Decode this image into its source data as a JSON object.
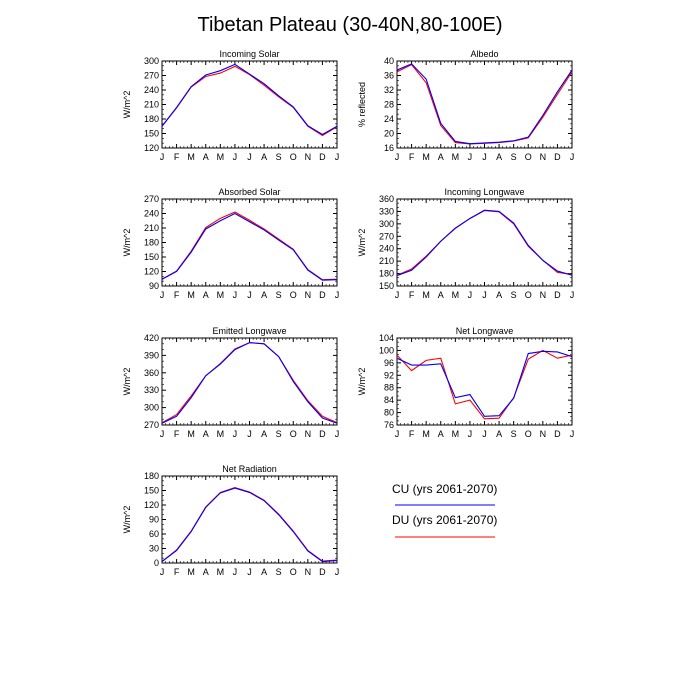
{
  "figure_title": "Tibetan Plateau (30-40N,80-100E)",
  "legend": {
    "entries": [
      {
        "label": "CU (yrs 2061-2070)",
        "color": "#0000ff"
      },
      {
        "label": "DU (yrs 2061-2070)",
        "color": "#ff0000"
      }
    ]
  },
  "chart_data": [
    {
      "type": "line",
      "title": "Incoming Solar",
      "ylabel": "W/m^2",
      "categories": [
        "J",
        "F",
        "M",
        "A",
        "M",
        "J",
        "J",
        "A",
        "S",
        "O",
        "N",
        "D",
        "J"
      ],
      "ylim": [
        120,
        300
      ],
      "yticks": [
        120,
        150,
        180,
        210,
        240,
        270,
        300
      ],
      "series": [
        {
          "name": "CU (yrs 2061-2070)",
          "color": "#0000ff",
          "values": [
            165,
            204,
            247,
            271,
            280,
            293,
            273,
            253,
            228,
            205,
            166,
            148,
            165
          ]
        },
        {
          "name": "DU (yrs 2061-2070)",
          "color": "#ff0000",
          "values": [
            165,
            203,
            246,
            268,
            275,
            289,
            272,
            250,
            226,
            204,
            165,
            146,
            164
          ]
        }
      ]
    },
    {
      "type": "line",
      "title": "Albedo",
      "ylabel": "% reflected",
      "categories": [
        "J",
        "F",
        "M",
        "A",
        "M",
        "J",
        "J",
        "A",
        "S",
        "O",
        "N",
        "D",
        "J"
      ],
      "ylim": [
        16,
        40
      ],
      "yticks": [
        16,
        20,
        24,
        28,
        32,
        36,
        40
      ],
      "series": [
        {
          "name": "CU (yrs 2061-2070)",
          "color": "#0000ff",
          "values": [
            37.5,
            39.2,
            35.0,
            22.8,
            17.8,
            17.2,
            17.4,
            17.6,
            18.0,
            19.0,
            25.0,
            31.5,
            37.5
          ]
        },
        {
          "name": "DU (yrs 2061-2070)",
          "color": "#ff0000",
          "values": [
            37.0,
            39.0,
            34.0,
            22.2,
            17.5,
            17.1,
            17.3,
            17.5,
            17.9,
            18.8,
            24.5,
            30.8,
            37.0
          ]
        }
      ]
    },
    {
      "type": "line",
      "title": "Absorbed Solar",
      "ylabel": "W/m^2",
      "categories": [
        "J",
        "F",
        "M",
        "A",
        "M",
        "J",
        "J",
        "A",
        "S",
        "O",
        "N",
        "D",
        "J"
      ],
      "ylim": [
        90,
        270
      ],
      "yticks": [
        90,
        120,
        150,
        180,
        210,
        240,
        270
      ],
      "series": [
        {
          "name": "CU (yrs 2061-2070)",
          "color": "#0000ff",
          "values": [
            104,
            120,
            160,
            208,
            225,
            240,
            223,
            206,
            185,
            165,
            123,
            102,
            103
          ]
        },
        {
          "name": "DU (yrs 2061-2070)",
          "color": "#ff0000",
          "values": [
            104,
            121,
            162,
            211,
            230,
            243,
            226,
            208,
            187,
            166,
            124,
            103,
            104
          ]
        }
      ]
    },
    {
      "type": "line",
      "title": "Incoming Longwave",
      "ylabel": "W/m^2",
      "categories": [
        "J",
        "F",
        "M",
        "A",
        "M",
        "J",
        "J",
        "A",
        "S",
        "O",
        "N",
        "D",
        "J"
      ],
      "ylim": [
        150,
        360
      ],
      "yticks": [
        150,
        180,
        210,
        240,
        270,
        300,
        330,
        360
      ],
      "series": [
        {
          "name": "CU (yrs 2061-2070)",
          "color": "#0000ff",
          "values": [
            175,
            188,
            220,
            258,
            290,
            313,
            333,
            330,
            302,
            248,
            212,
            186,
            176
          ]
        },
        {
          "name": "DU (yrs 2061-2070)",
          "color": "#ff0000",
          "values": [
            176,
            191,
            222,
            258,
            289,
            313,
            332,
            329,
            300,
            246,
            212,
            183,
            178
          ]
        }
      ]
    },
    {
      "type": "line",
      "title": "Emitted Longwave",
      "ylabel": "W/m^2",
      "categories": [
        "J",
        "F",
        "M",
        "A",
        "M",
        "J",
        "J",
        "A",
        "S",
        "O",
        "N",
        "D",
        "J"
      ],
      "ylim": [
        270,
        420
      ],
      "yticks": [
        270,
        300,
        330,
        360,
        390,
        420
      ],
      "series": [
        {
          "name": "CU (yrs 2061-2070)",
          "color": "#0000ff",
          "values": [
            273,
            285,
            317,
            355,
            375,
            400,
            412,
            410,
            388,
            345,
            310,
            282,
            273
          ]
        },
        {
          "name": "DU (yrs 2061-2070)",
          "color": "#ff0000",
          "values": [
            274,
            288,
            320,
            355,
            376,
            401,
            412,
            410,
            388,
            347,
            312,
            285,
            274
          ]
        }
      ]
    },
    {
      "type": "line",
      "title": "Net Longwave",
      "ylabel": "W/m^2",
      "categories": [
        "J",
        "F",
        "M",
        "A",
        "M",
        "J",
        "J",
        "A",
        "S",
        "O",
        "N",
        "D",
        "J"
      ],
      "ylim": [
        76,
        104
      ],
      "yticks": [
        76,
        80,
        84,
        88,
        92,
        96,
        100,
        104
      ],
      "series": [
        {
          "name": "CU (yrs 2061-2070)",
          "color": "#0000ff",
          "values": [
            97.5,
            95.3,
            95.3,
            95.7,
            84.8,
            85.8,
            78.8,
            79.0,
            84.6,
            99.0,
            99.7,
            99.5,
            98.0
          ]
        },
        {
          "name": "DU (yrs 2061-2070)",
          "color": "#ff0000",
          "values": [
            98.5,
            93.5,
            96.8,
            97.5,
            82.8,
            84.0,
            78.0,
            78.2,
            84.8,
            97.2,
            100.0,
            97.5,
            98.5
          ]
        }
      ]
    },
    {
      "type": "line",
      "title": "Net Radiation",
      "ylabel": "W/m^2",
      "categories": [
        "J",
        "F",
        "M",
        "A",
        "M",
        "J",
        "J",
        "A",
        "S",
        "O",
        "N",
        "D",
        "J"
      ],
      "ylim": [
        0,
        180
      ],
      "yticks": [
        0,
        30,
        60,
        90,
        120,
        150,
        180
      ],
      "series": [
        {
          "name": "CU (yrs 2061-2070)",
          "color": "#0000ff",
          "values": [
            3,
            26,
            65,
            115,
            145,
            155,
            146,
            129,
            100,
            65,
            25,
            3,
            5
          ]
        },
        {
          "name": "DU (yrs 2061-2070)",
          "color": "#ff0000",
          "values": [
            3,
            27,
            66,
            116,
            146,
            156,
            147,
            130,
            101,
            66,
            26,
            4,
            6
          ]
        }
      ]
    }
  ]
}
